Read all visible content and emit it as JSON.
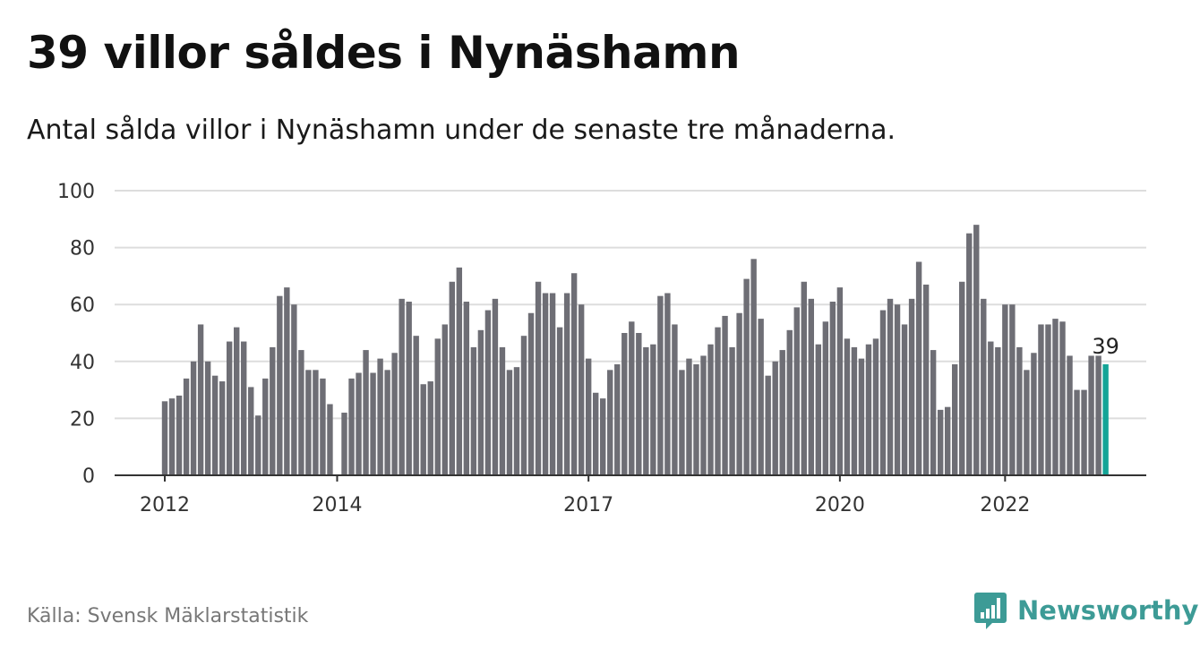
{
  "title": "39 villor såldes i Nynäshamn",
  "subtitle": "Antal sålda villor i Nynäshamn under de senaste tre månaderna.",
  "source": "Källa: Svensk Mäklarstatistik",
  "brand": {
    "name": "Newsworthy",
    "icon": "newsworthy-logo-icon",
    "color": "#3d9b96"
  },
  "colors": {
    "bar": "#6e6e75",
    "highlight": "#14a497",
    "grid": "#dddddd",
    "axis": "#333333"
  },
  "chart_data": {
    "type": "bar",
    "ylim": [
      0,
      100
    ],
    "y_ticks": [
      0,
      20,
      40,
      60,
      80,
      100
    ],
    "x_tick_labels": [
      "2012",
      "2014",
      "2017",
      "2020",
      "2022"
    ],
    "x_tick_index": [
      0,
      24,
      59,
      94,
      117
    ],
    "grid": true,
    "values": [
      26,
      27,
      28,
      34,
      40,
      53,
      40,
      35,
      33,
      47,
      52,
      47,
      31,
      21,
      34,
      45,
      63,
      66,
      60,
      44,
      37,
      37,
      34,
      25,
      null,
      22,
      34,
      36,
      44,
      36,
      41,
      37,
      43,
      62,
      61,
      49,
      32,
      33,
      48,
      53,
      68,
      73,
      61,
      45,
      51,
      58,
      62,
      45,
      37,
      38,
      49,
      57,
      68,
      64,
      64,
      52,
      64,
      71,
      60,
      41,
      29,
      27,
      37,
      39,
      50,
      54,
      50,
      45,
      46,
      63,
      64,
      53,
      37,
      41,
      39,
      42,
      46,
      52,
      56,
      45,
      57,
      69,
      76,
      55,
      35,
      40,
      44,
      51,
      59,
      68,
      62,
      46,
      54,
      61,
      66,
      48,
      45,
      41,
      46,
      48,
      58,
      62,
      60,
      53,
      62,
      75,
      67,
      44,
      23,
      24,
      39,
      68,
      85,
      88,
      62,
      47,
      45,
      60,
      60,
      45,
      37,
      43,
      53,
      53,
      55,
      54,
      42,
      30,
      30,
      42,
      42,
      39
    ],
    "highlight_label": "39"
  }
}
